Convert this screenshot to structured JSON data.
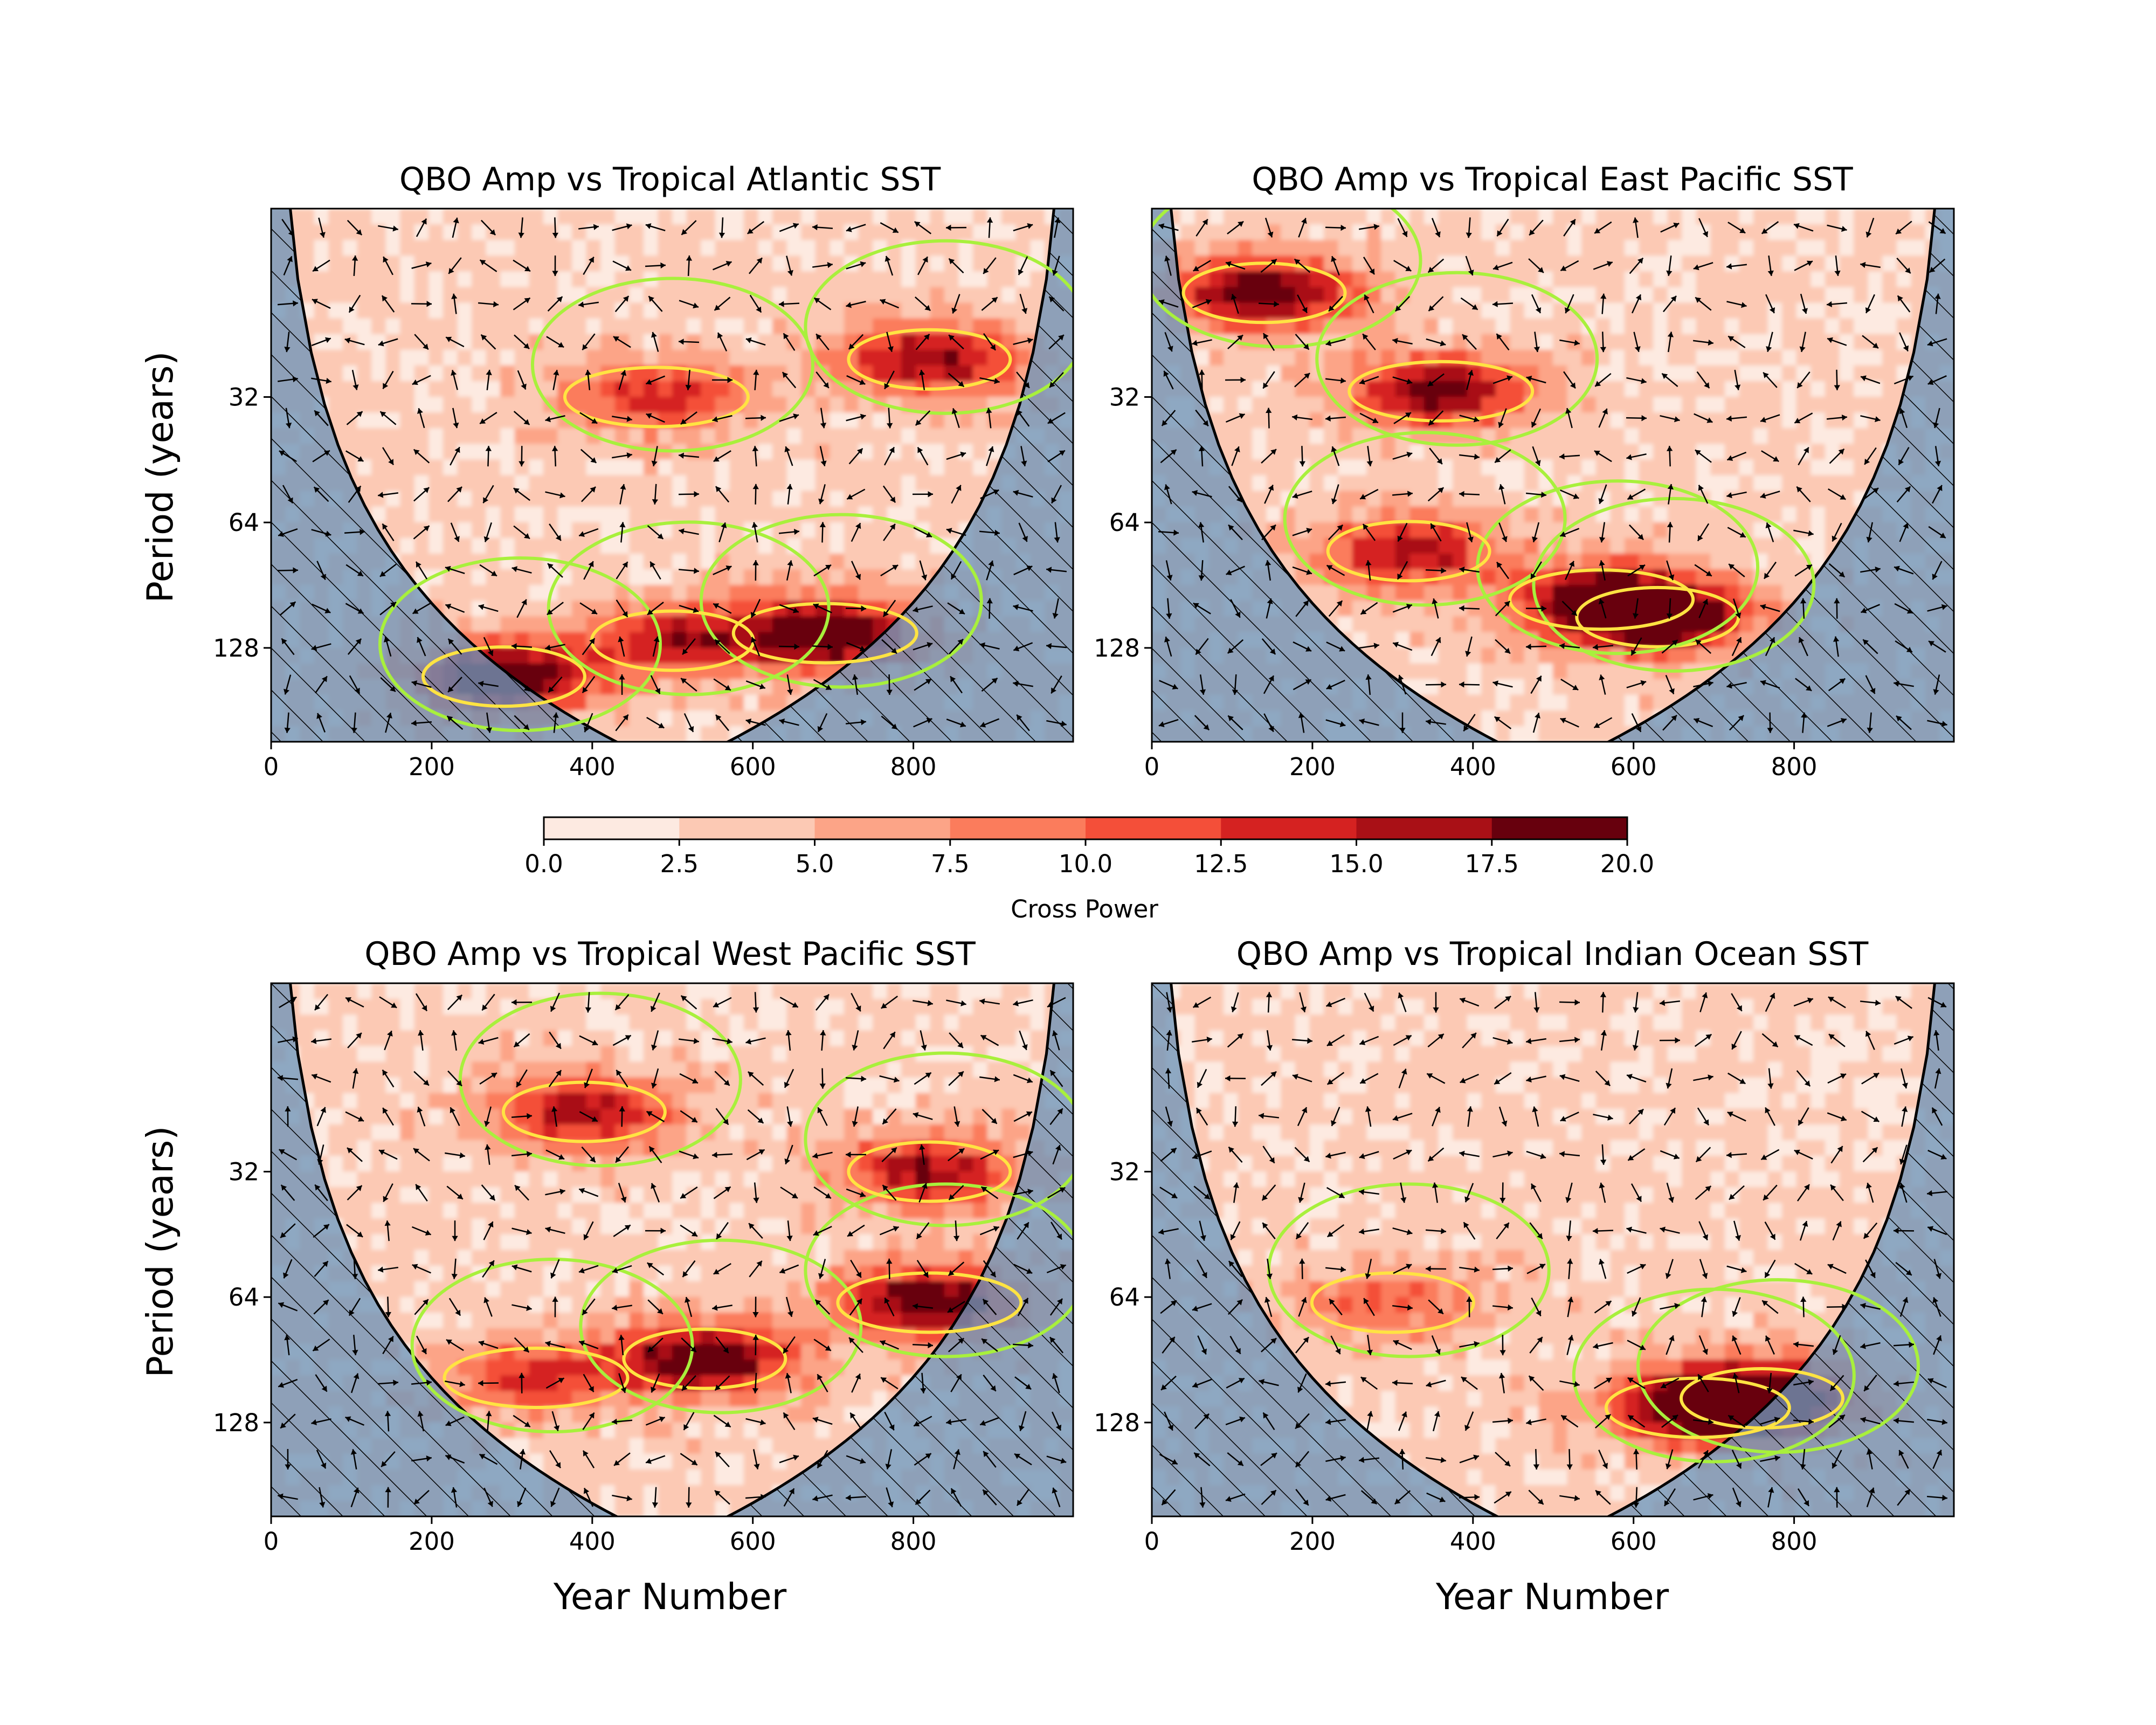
{
  "colors": {
    "cross_power_scale": [
      "#fdeae1",
      "#fcc9b4",
      "#fca487",
      "#fb7c5c",
      "#f44f39",
      "#d52221",
      "#a91016",
      "#67000d"
    ],
    "coi_mask": "#6e95b8",
    "significance_95": "#ffe342",
    "significance_wavelet": "#a8f03c"
  },
  "colorbar": {
    "label": "Cross Power",
    "ticks": [
      "0.0",
      "2.5",
      "5.0",
      "7.5",
      "10.0",
      "12.5",
      "15.0",
      "17.5",
      "20.0"
    ],
    "range": [
      0,
      20
    ]
  },
  "chart_data": [
    {
      "type": "heatmap",
      "title": "QBO Amp vs Tropical Atlantic SST",
      "xlabel": "",
      "ylabel": "Period (years)",
      "xlim": [
        0,
        999
      ],
      "x_ticks": [
        "0",
        "200",
        "400",
        "600",
        "800"
      ],
      "y_ticks": [
        "32",
        "64",
        "128"
      ],
      "y_scale": "log2",
      "hotspots": [
        {
          "year": 290,
          "period": 150,
          "power": 19
        },
        {
          "year": 690,
          "period": 118,
          "power": 20
        },
        {
          "year": 500,
          "period": 123,
          "power": 12
        },
        {
          "year": 480,
          "period": 32,
          "power": 11
        },
        {
          "year": 820,
          "period": 26,
          "power": 15
        }
      ]
    },
    {
      "type": "heatmap",
      "title": "QBO Amp vs Tropical East Pacific SST",
      "xlabel": "",
      "ylabel": "",
      "xlim": [
        0,
        999
      ],
      "x_ticks": [
        "0",
        "200",
        "400",
        "600",
        "800"
      ],
      "y_ticks": [
        "32",
        "64",
        "128"
      ],
      "y_scale": "log2",
      "hotspots": [
        {
          "year": 630,
          "period": 108,
          "power": 18
        },
        {
          "year": 560,
          "period": 98,
          "power": 16
        },
        {
          "year": 320,
          "period": 75,
          "power": 13
        },
        {
          "year": 360,
          "period": 31,
          "power": 16
        },
        {
          "year": 140,
          "period": 18,
          "power": 17
        }
      ]
    },
    {
      "type": "heatmap",
      "title": "QBO Amp vs Tropical West Pacific SST",
      "xlabel": "Year Number",
      "ylabel": "Period (years)",
      "xlim": [
        0,
        999
      ],
      "x_ticks": [
        "0",
        "200",
        "400",
        "600",
        "800"
      ],
      "y_ticks": [
        "32",
        "64",
        "128"
      ],
      "y_scale": "log2",
      "hotspots": [
        {
          "year": 540,
          "period": 90,
          "power": 18
        },
        {
          "year": 820,
          "period": 66,
          "power": 18
        },
        {
          "year": 820,
          "period": 32,
          "power": 14
        },
        {
          "year": 330,
          "period": 100,
          "power": 10
        },
        {
          "year": 390,
          "period": 23,
          "power": 14
        }
      ]
    },
    {
      "type": "heatmap",
      "title": "QBO Amp vs Tropical Indian Ocean SST",
      "xlabel": "Year Number",
      "ylabel": "",
      "xlim": [
        0,
        999
      ],
      "x_ticks": [
        "0",
        "200",
        "400",
        "600",
        "800"
      ],
      "y_ticks": [
        "32",
        "64",
        "128"
      ],
      "y_scale": "log2",
      "hotspots": [
        {
          "year": 760,
          "period": 112,
          "power": 20
        },
        {
          "year": 680,
          "period": 118,
          "power": 16
        },
        {
          "year": 300,
          "period": 66,
          "power": 8
        }
      ]
    }
  ]
}
